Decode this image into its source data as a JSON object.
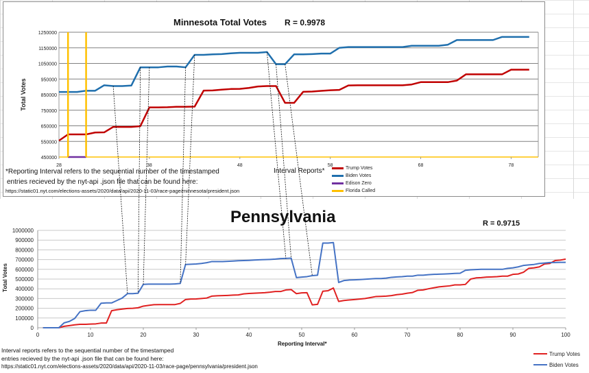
{
  "chart_data": [
    {
      "type": "line",
      "title": "Minnesota Total Votes",
      "annotation": "R = 0.9978",
      "xlabel": "Interval Reports*",
      "ylabel": "Total Votes",
      "xlim": [
        28,
        81
      ],
      "ylim": [
        450000,
        1250000
      ],
      "x_ticks": [
        28,
        38,
        48,
        58,
        68,
        78
      ],
      "y_ticks": [
        450000,
        550000,
        650000,
        750000,
        850000,
        950000,
        1050000,
        1150000,
        1250000
      ],
      "grid": true,
      "legend_position": "bottom-center",
      "series": [
        {
          "name": "Trump Votes",
          "color": "#c00000",
          "x": [
            28,
            29,
            30,
            31,
            32,
            33,
            34,
            35,
            36,
            37,
            38,
            39,
            40,
            41,
            42,
            43,
            44,
            45,
            46,
            47,
            48,
            49,
            50,
            51,
            52,
            53,
            54,
            55,
            56,
            57,
            58,
            59,
            60,
            61,
            62,
            63,
            64,
            65,
            66,
            67,
            68,
            69,
            70,
            71,
            72,
            73,
            74,
            75,
            76,
            77,
            78,
            79,
            80
          ],
          "y": [
            555000,
            595000,
            595000,
            595000,
            607000,
            608000,
            643000,
            643000,
            643000,
            648000,
            768000,
            768000,
            769000,
            772000,
            772000,
            773000,
            876000,
            877000,
            882000,
            886000,
            887000,
            893000,
            902000,
            905000,
            905000,
            797000,
            797000,
            868000,
            870000,
            874000,
            878000,
            880000,
            909000,
            910000,
            910000,
            910000,
            910000,
            910000,
            910000,
            915000,
            930000,
            930000,
            930000,
            930000,
            940000,
            980000,
            980000,
            980000,
            980000,
            980000,
            1010000,
            1010000,
            1010000
          ]
        },
        {
          "name": "Biden Votes",
          "color": "#1f6fad",
          "x": [
            28,
            29,
            30,
            31,
            32,
            33,
            34,
            35,
            36,
            37,
            38,
            39,
            40,
            41,
            42,
            43,
            44,
            45,
            46,
            47,
            48,
            49,
            50,
            51,
            52,
            53,
            54,
            55,
            56,
            57,
            58,
            59,
            60,
            61,
            62,
            63,
            64,
            65,
            66,
            67,
            68,
            69,
            70,
            71,
            72,
            73,
            74,
            75,
            76,
            77,
            78,
            79,
            80
          ],
          "y": [
            867000,
            867000,
            867000,
            875000,
            875000,
            910000,
            905000,
            905000,
            908000,
            1025000,
            1025000,
            1025000,
            1030000,
            1030000,
            1025000,
            1105000,
            1105000,
            1108000,
            1110000,
            1115000,
            1118000,
            1118000,
            1118000,
            1123000,
            1045000,
            1045000,
            1108000,
            1108000,
            1110000,
            1113000,
            1113000,
            1150000,
            1155000,
            1155000,
            1155000,
            1155000,
            1155000,
            1155000,
            1155000,
            1163000,
            1163000,
            1163000,
            1163000,
            1170000,
            1200000,
            1200000,
            1200000,
            1200000,
            1200000,
            1220000,
            1220000,
            1220000,
            1220000
          ]
        },
        {
          "name": "Edison Zero",
          "color": "#7030a0",
          "x": [
            29,
            31
          ],
          "y": [
            450000,
            450000
          ]
        },
        {
          "name": "Florida Called",
          "color": "#ffc000",
          "vertical_lines_at_x": [
            29,
            31
          ]
        }
      ],
      "footnote": [
        "*Reporting Interval refers to the sequential number of the timestamped",
        " entries recieved by the nyt-api .json file that can be found here:",
        "https://static01.nyt.com/elections-assets/2020/data/api/2020-11-03/race-page/minnesota/president.json"
      ]
    },
    {
      "type": "line",
      "title": "Pennsylvania",
      "annotation": "R = 0.9715",
      "xlabel": "Reporting Interval*",
      "ylabel": "Total Votes",
      "xlim": [
        0,
        100
      ],
      "ylim": [
        0,
        1000000
      ],
      "x_ticks": [
        0,
        10,
        20,
        30,
        40,
        50,
        60,
        70,
        80,
        90,
        100
      ],
      "y_ticks": [
        0,
        100000,
        200000,
        300000,
        400000,
        500000,
        600000,
        700000,
        800000,
        900000,
        1000000
      ],
      "grid": true,
      "legend_position": "bottom-right",
      "series": [
        {
          "name": "Trump Votes",
          "color": "#e02020",
          "x": [
            1,
            4,
            5,
            6,
            7,
            8,
            9,
            10,
            11,
            12,
            13,
            14,
            15,
            16,
            17,
            18,
            19,
            20,
            21,
            22,
            23,
            24,
            25,
            26,
            27,
            28,
            29,
            30,
            31,
            32,
            33,
            34,
            35,
            36,
            37,
            38,
            39,
            40,
            41,
            42,
            43,
            44,
            45,
            46,
            47,
            48,
            49,
            50,
            51,
            52,
            53,
            54,
            55,
            56,
            57,
            58,
            59,
            60,
            61,
            62,
            63,
            64,
            65,
            66,
            67,
            68,
            69,
            70,
            71,
            72,
            73,
            74,
            75,
            76,
            77,
            78,
            79,
            80,
            81,
            82,
            83,
            84,
            85,
            86,
            87,
            88,
            89,
            90,
            91,
            92,
            93,
            94,
            95,
            96,
            97,
            98,
            99,
            100
          ],
          "y": [
            0,
            0,
            15000,
            22000,
            30000,
            35000,
            35000,
            38000,
            40000,
            48000,
            48000,
            175000,
            185000,
            192000,
            198000,
            200000,
            205000,
            222000,
            230000,
            237000,
            238000,
            238000,
            238000,
            238000,
            250000,
            290000,
            295000,
            296000,
            300000,
            305000,
            325000,
            328000,
            330000,
            332000,
            335000,
            337000,
            348000,
            352000,
            355000,
            357000,
            360000,
            365000,
            372000,
            372000,
            388000,
            392000,
            350000,
            358000,
            360000,
            235000,
            240000,
            375000,
            380000,
            408000,
            270000,
            280000,
            285000,
            290000,
            295000,
            300000,
            310000,
            320000,
            322000,
            325000,
            330000,
            340000,
            345000,
            355000,
            362000,
            385000,
            388000,
            400000,
            410000,
            420000,
            425000,
            430000,
            440000,
            440000,
            445000,
            500000,
            512000,
            515000,
            520000,
            522000,
            525000,
            530000,
            530000,
            548000,
            552000,
            570000,
            610000,
            615000,
            625000,
            655000,
            660000,
            690000,
            695000,
            705000
          ]
        },
        {
          "name": "Biden Votes",
          "color": "#4472c4",
          "x": [
            1,
            4,
            5,
            6,
            7,
            8,
            9,
            10,
            11,
            12,
            13,
            14,
            15,
            16,
            17,
            18,
            19,
            20,
            21,
            22,
            23,
            24,
            25,
            26,
            27,
            28,
            29,
            30,
            31,
            32,
            33,
            34,
            35,
            36,
            37,
            38,
            39,
            40,
            41,
            42,
            43,
            44,
            45,
            46,
            47,
            48,
            49,
            50,
            51,
            52,
            53,
            54,
            55,
            56,
            57,
            58,
            59,
            60,
            61,
            62,
            63,
            64,
            65,
            66,
            67,
            68,
            69,
            70,
            71,
            72,
            73,
            74,
            75,
            76,
            77,
            78,
            79,
            80,
            81,
            82,
            83,
            84,
            85,
            86,
            87,
            88,
            89,
            90,
            91,
            92,
            93,
            94,
            95,
            96,
            97,
            98,
            99,
            100
          ],
          "y": [
            0,
            0,
            50000,
            65000,
            95000,
            165000,
            175000,
            180000,
            180000,
            252000,
            255000,
            255000,
            280000,
            305000,
            350000,
            350000,
            355000,
            445000,
            448000,
            448000,
            448000,
            448000,
            448000,
            450000,
            455000,
            650000,
            652000,
            655000,
            660000,
            668000,
            680000,
            680000,
            680000,
            682000,
            685000,
            688000,
            690000,
            692000,
            695000,
            698000,
            700000,
            702000,
            705000,
            710000,
            712000,
            715000,
            515000,
            520000,
            525000,
            535000,
            540000,
            870000,
            870000,
            875000,
            465000,
            485000,
            490000,
            492000,
            495000,
            498000,
            502000,
            505000,
            505000,
            510000,
            518000,
            522000,
            525000,
            530000,
            530000,
            540000,
            540000,
            545000,
            548000,
            550000,
            552000,
            555000,
            558000,
            560000,
            590000,
            595000,
            598000,
            600000,
            600000,
            600000,
            600000,
            600000,
            610000,
            615000,
            625000,
            640000,
            645000,
            650000,
            660000,
            665000,
            670000,
            670000,
            672000,
            672000
          ]
        }
      ],
      "footnote": [
        "Interval reports refers to the sequential number of the timestamped",
        "entries recieved by the nyt-api .json file that can be found here:",
        "https://static01.nyt.com/elections-assets/2020/data/api/2020-11-03/race-page/pennsylvania/president.json"
      ]
    }
  ],
  "connectors": [
    {
      "mn_x": 34,
      "pa_x": 17
    },
    {
      "mn_x": 37,
      "pa_x": 19
    },
    {
      "mn_x": 38,
      "pa_x": 20
    },
    {
      "mn_x": 42,
      "pa_x": 27
    },
    {
      "mn_x": 43,
      "pa_x": 28
    },
    {
      "mn_x": 51,
      "pa_x": 47
    },
    {
      "mn_x": 52,
      "pa_x": 48
    },
    {
      "mn_x": 53,
      "pa_x": 52
    }
  ]
}
